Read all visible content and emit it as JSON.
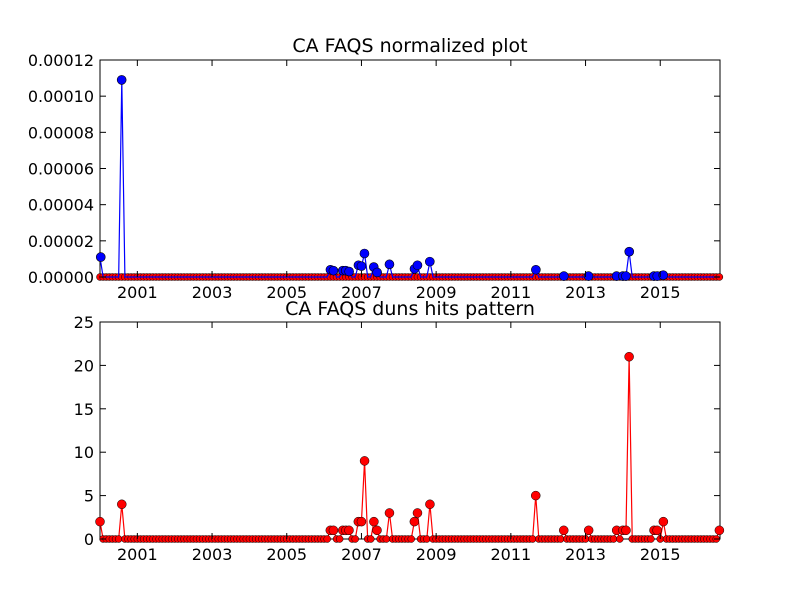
{
  "chart_data": [
    {
      "type": "line",
      "title": "CA FAQS normalized plot",
      "xlabel": "",
      "ylabel": "",
      "x_range": [
        2000.0,
        2016.6
      ],
      "ylim": [
        0,
        0.00012
      ],
      "y_ticks": [
        "0.00000",
        "0.00002",
        "0.00004",
        "0.00006",
        "0.00008",
        "0.00010",
        "0.00012"
      ],
      "x_ticks": [
        "2001",
        "2003",
        "2005",
        "2007",
        "2009",
        "2011",
        "2013",
        "2015"
      ],
      "grid": false,
      "legend": "none",
      "colors": {
        "line": "#0000ff",
        "marker": "#0000ff",
        "baseline": "#ff0000"
      },
      "points": [
        {
          "x": 2000.02,
          "y": 1.1e-05
        },
        {
          "x": 2000.58,
          "y": 0.000109
        },
        {
          "x": 2006.17,
          "y": 4e-06
        },
        {
          "x": 2006.25,
          "y": 3.5e-06
        },
        {
          "x": 2006.5,
          "y": 3.5e-06
        },
        {
          "x": 2006.58,
          "y": 3.5e-06
        },
        {
          "x": 2006.67,
          "y": 3e-06
        },
        {
          "x": 2006.92,
          "y": 6.5e-06
        },
        {
          "x": 2007.0,
          "y": 6e-06
        },
        {
          "x": 2007.08,
          "y": 1.3e-05
        },
        {
          "x": 2007.33,
          "y": 5.5e-06
        },
        {
          "x": 2007.42,
          "y": 2.5e-06
        },
        {
          "x": 2007.75,
          "y": 7e-06
        },
        {
          "x": 2008.42,
          "y": 4.5e-06
        },
        {
          "x": 2008.5,
          "y": 6.5e-06
        },
        {
          "x": 2008.83,
          "y": 8.5e-06
        },
        {
          "x": 2011.67,
          "y": 4e-06
        },
        {
          "x": 2012.42,
          "y": 5e-07
        },
        {
          "x": 2013.08,
          "y": 5e-07
        },
        {
          "x": 2013.83,
          "y": 5e-07
        },
        {
          "x": 2014.0,
          "y": 5e-07
        },
        {
          "x": 2014.08,
          "y": 5e-07
        },
        {
          "x": 2014.17,
          "y": 1.4e-05
        },
        {
          "x": 2014.83,
          "y": 5e-07
        },
        {
          "x": 2014.92,
          "y": 5e-07
        },
        {
          "x": 2015.08,
          "y": 1e-06
        }
      ]
    },
    {
      "type": "line",
      "title": "CA FAQS duns hits pattern",
      "xlabel": "",
      "ylabel": "",
      "x_range": [
        2000.0,
        2016.6
      ],
      "ylim": [
        0,
        25
      ],
      "y_ticks": [
        "0",
        "5",
        "10",
        "15",
        "20",
        "25"
      ],
      "x_ticks": [
        "2001",
        "2003",
        "2005",
        "2007",
        "2009",
        "2011",
        "2013",
        "2015"
      ],
      "grid": false,
      "legend": "none",
      "colors": {
        "line": "#ff0000",
        "marker": "#ff0000"
      },
      "points": [
        {
          "x": 2000.02,
          "y": 2
        },
        {
          "x": 2000.58,
          "y": 4
        },
        {
          "x": 2006.17,
          "y": 1
        },
        {
          "x": 2006.25,
          "y": 1
        },
        {
          "x": 2006.5,
          "y": 1
        },
        {
          "x": 2006.58,
          "y": 1
        },
        {
          "x": 2006.67,
          "y": 1
        },
        {
          "x": 2006.92,
          "y": 2
        },
        {
          "x": 2007.0,
          "y": 2
        },
        {
          "x": 2007.08,
          "y": 9
        },
        {
          "x": 2007.33,
          "y": 2
        },
        {
          "x": 2007.42,
          "y": 1
        },
        {
          "x": 2007.75,
          "y": 3
        },
        {
          "x": 2008.42,
          "y": 2
        },
        {
          "x": 2008.5,
          "y": 3
        },
        {
          "x": 2008.83,
          "y": 4
        },
        {
          "x": 2011.67,
          "y": 5
        },
        {
          "x": 2012.42,
          "y": 1
        },
        {
          "x": 2013.08,
          "y": 1
        },
        {
          "x": 2013.83,
          "y": 1
        },
        {
          "x": 2014.0,
          "y": 1
        },
        {
          "x": 2014.08,
          "y": 1
        },
        {
          "x": 2014.17,
          "y": 21
        },
        {
          "x": 2014.83,
          "y": 1
        },
        {
          "x": 2014.92,
          "y": 1
        },
        {
          "x": 2015.08,
          "y": 2
        },
        {
          "x": 2016.58,
          "y": 1
        }
      ]
    }
  ]
}
